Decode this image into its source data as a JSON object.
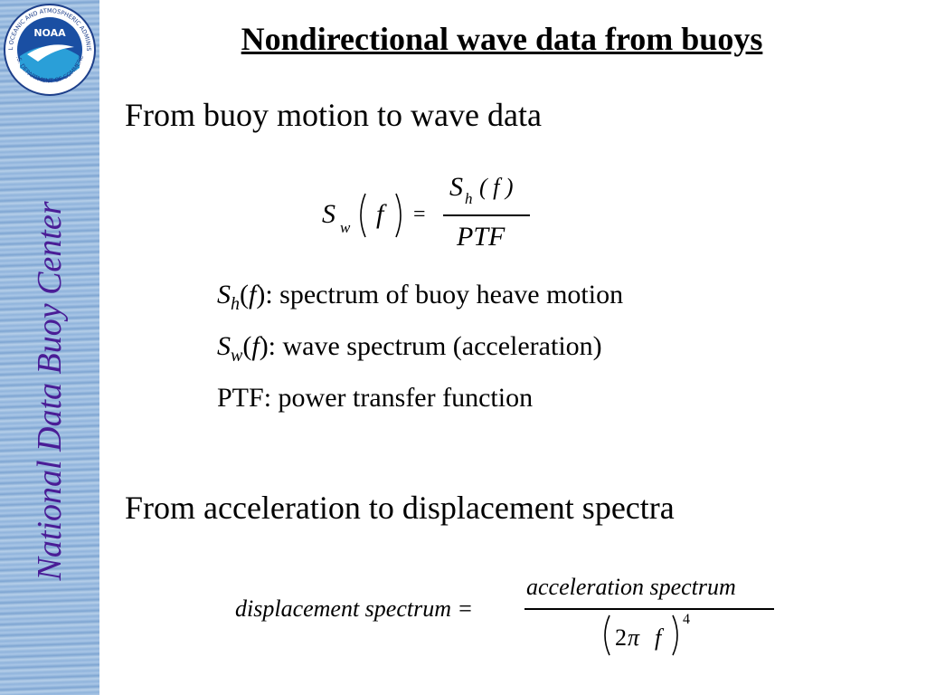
{
  "sidebar": {
    "logo_text": "NOAA",
    "logo_ring_top": "NATIONAL OCEANIC AND ATMOSPHERIC ADMINISTRATION",
    "logo_ring_bottom": "U.S. DEPARTMENT OF COMMERCE",
    "vertical_title": "National Data Buoy Center"
  },
  "title": "Nondirectional wave data from buoys",
  "section1": {
    "heading": "From buoy motion to wave data",
    "formula": {
      "lhs_symbol": "S",
      "lhs_sub": "w",
      "lhs_arg": "f",
      "equals": "=",
      "num_symbol": "S",
      "num_sub": "h",
      "num_arg": "( f )",
      "denominator": "PTF"
    },
    "definitions": [
      {
        "symbol": "S",
        "sub": "h",
        "open": "(",
        "arg": "f",
        "text": "): spectrum of buoy heave motion"
      },
      {
        "symbol": "S",
        "sub": "w",
        "open": "(",
        "arg": "f",
        "text": "): wave spectrum (acceleration)"
      },
      {
        "text": "PTF: power transfer function"
      }
    ]
  },
  "section2": {
    "heading": "From acceleration to displacement spectra",
    "formula": {
      "lhs": "displacement spectrum =",
      "numerator": "acceleration spectrum",
      "den_coef": "2",
      "den_pi": "π",
      "den_var": "f",
      "exponent": "4"
    }
  }
}
